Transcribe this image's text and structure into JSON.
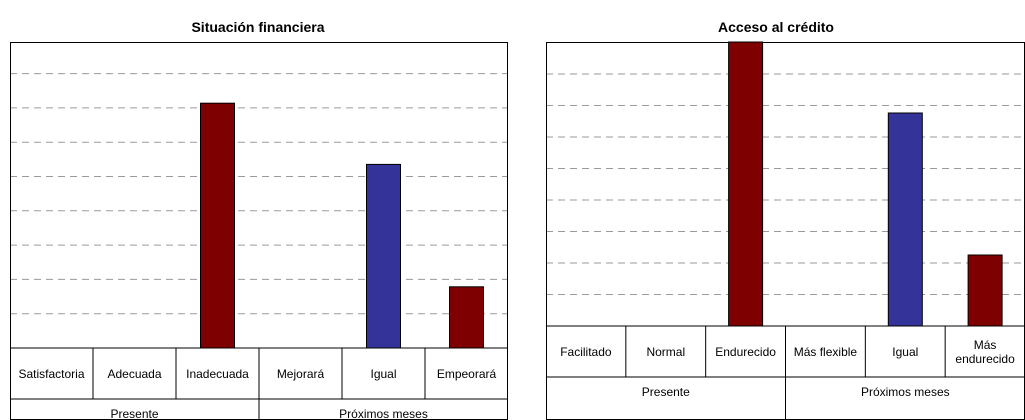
{
  "colors": {
    "dark_red": "#7f0000",
    "blue": "#333399",
    "grid": "#9a9a9a",
    "axis": "#000000"
  },
  "chart_data": [
    {
      "type": "bar",
      "title": "Situación financiera",
      "categories": [
        "Satisfactoria",
        "Adecuada",
        "Inadecuada",
        "Mejorará",
        "Igual",
        "Empeorará"
      ],
      "category_lines": [
        [
          "Satisfactoria"
        ],
        [
          "Adecuada"
        ],
        [
          "Inadecuada"
        ],
        [
          "Mejorará"
        ],
        [
          "Igual"
        ],
        [
          "Empeorará"
        ]
      ],
      "values": [
        0,
        0,
        80,
        0,
        60,
        20
      ],
      "bar_colors": [
        "#7f0000",
        "#7f0000",
        "#7f0000",
        "#333399",
        "#333399",
        "#7f0000"
      ],
      "groups": [
        {
          "label": "Presente",
          "span": [
            0,
            3
          ]
        },
        {
          "label": "Próximos meses",
          "span": [
            3,
            6
          ]
        }
      ],
      "ylim": [
        0,
        100
      ],
      "grid": true,
      "xlabel": "",
      "ylabel": ""
    },
    {
      "type": "bar",
      "title": "Acceso al crédito",
      "categories": [
        "Facilitado",
        "Normal",
        "Endurecido",
        "Más flexible",
        "Igual",
        "Más endurecido"
      ],
      "category_lines": [
        [
          "Facilitado"
        ],
        [
          "Normal"
        ],
        [
          "Endurecido"
        ],
        [
          "Más flexible"
        ],
        [
          "Igual"
        ],
        [
          "Más",
          "endurecido"
        ]
      ],
      "values": [
        0,
        0,
        80,
        0,
        60,
        20
      ],
      "bar_colors": [
        "#7f0000",
        "#7f0000",
        "#7f0000",
        "#333399",
        "#333399",
        "#7f0000"
      ],
      "groups": [
        {
          "label": "Presente",
          "span": [
            0,
            3
          ]
        },
        {
          "label": "Próximos meses",
          "span": [
            3,
            6
          ]
        }
      ],
      "ylim": [
        0,
        80
      ],
      "grid": true,
      "xlabel": "",
      "ylabel": ""
    }
  ]
}
